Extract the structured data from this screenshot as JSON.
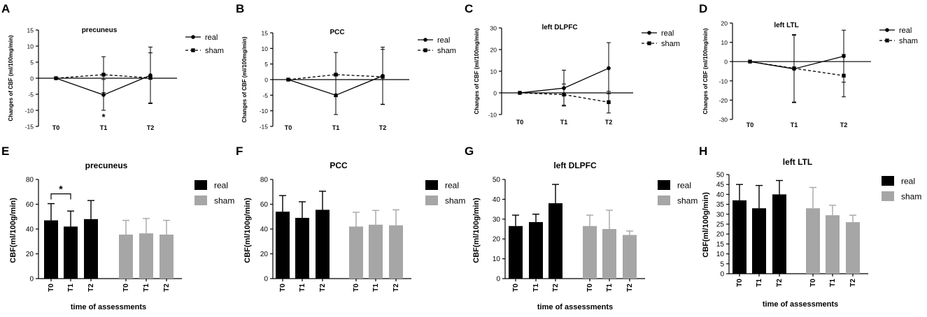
{
  "chart_data": [
    {
      "id": "A",
      "type": "line",
      "panel_label": "A",
      "title": "precuneus",
      "ylabel": "Changes of CBF (ml/100mg/min)",
      "xlabel": "",
      "ylim": [
        -15,
        15
      ],
      "yticks": [
        15,
        10,
        5,
        0,
        -5,
        -10,
        -15
      ],
      "yticklabels": [
        "15",
        "10",
        "5",
        "0",
        "-5",
        "-10",
        "-15"
      ],
      "categories": [
        "T0",
        "T1",
        "T2"
      ],
      "series": [
        {
          "name": "real",
          "values": [
            0,
            -5.2,
            0.9
          ],
          "err": [
            0,
            4.8,
            8.8
          ],
          "dash": false,
          "marker": "circle"
        },
        {
          "name": "sham",
          "values": [
            0,
            1.1,
            0.1
          ],
          "err": [
            0,
            5.6,
            7.8
          ],
          "dash": true,
          "marker": "square"
        }
      ],
      "annotation": "*"
    },
    {
      "id": "B",
      "type": "line",
      "panel_label": "B",
      "title": "PCC",
      "ylabel": "Changes of CBF (ml/100mg/min)",
      "xlabel": "",
      "ylim": [
        -15,
        15
      ],
      "yticks": [
        15,
        10,
        5,
        0,
        -5,
        -10,
        -15
      ],
      "yticklabels": [
        "15",
        "10",
        "5",
        "0",
        "-5",
        "-10",
        "-15"
      ],
      "categories": [
        "T0",
        "T1",
        "T2"
      ],
      "series": [
        {
          "name": "real",
          "values": [
            0,
            -5.0,
            1.2
          ],
          "err": [
            0,
            6.2,
            9.2
          ],
          "dash": false,
          "marker": "circle"
        },
        {
          "name": "sham",
          "values": [
            0,
            1.6,
            0.9
          ],
          "err": [
            0,
            7.1,
            8.8
          ],
          "dash": true,
          "marker": "square"
        }
      ]
    },
    {
      "id": "C",
      "type": "line",
      "panel_label": "C",
      "title": "left DLPFC",
      "ylabel": "Changes of CBF (ml/100mg/min)",
      "xlabel": "",
      "ylim": [
        -10,
        30
      ],
      "yticks": [
        30,
        20,
        10,
        0,
        -10
      ],
      "yticklabels": [
        "30",
        "20",
        "10",
        "0",
        "-10"
      ],
      "categories": [
        "T0",
        "T1",
        "T2"
      ],
      "series": [
        {
          "name": "real",
          "values": [
            0,
            2.2,
            11.4
          ],
          "err": [
            0,
            8.3,
            11.8
          ],
          "dash": false,
          "marker": "circle"
        },
        {
          "name": "sham",
          "values": [
            0,
            -0.8,
            -4.3
          ],
          "err": [
            0,
            4.9,
            5.0
          ],
          "dash": true,
          "marker": "square"
        }
      ]
    },
    {
      "id": "D",
      "type": "line",
      "panel_label": "D",
      "title": "left LTL",
      "ylabel": "Changes of CBF (ml/100mg/min)",
      "xlabel": "",
      "ylim": [
        -30,
        20
      ],
      "yticks": [
        20,
        10,
        0,
        -10,
        -20,
        -30
      ],
      "yticklabels": [
        "20",
        "10",
        "0",
        "-10",
        "-20",
        "-30"
      ],
      "categories": [
        "T0",
        "T1",
        "T2"
      ],
      "series": [
        {
          "name": "real",
          "values": [
            0,
            -3.8,
            2.8
          ],
          "err": [
            0,
            17.5,
            13.5
          ],
          "dash": false,
          "marker": "circle"
        },
        {
          "name": "sham",
          "values": [
            0,
            -3.5,
            -7.3
          ],
          "err": [
            0,
            17.5,
            11.0
          ],
          "dash": true,
          "marker": "square"
        }
      ]
    },
    {
      "id": "E",
      "type": "bar",
      "panel_label": "E",
      "title": "precuneus",
      "ylabel": "CBF(ml/100g/min)",
      "xlabel": "time of assessments",
      "ylim": [
        0,
        80
      ],
      "yticks": [
        80,
        60,
        40,
        20,
        0
      ],
      "yticklabels": [
        "80",
        "60",
        "40",
        "20",
        "0"
      ],
      "categories": [
        "T0",
        "T1",
        "T2"
      ],
      "series": [
        {
          "name": "real",
          "values": [
            47,
            42,
            48
          ],
          "err": [
            13.5,
            12.5,
            15
          ],
          "color": "#000000"
        },
        {
          "name": "sham",
          "values": [
            35.5,
            36.5,
            35.5
          ],
          "err": [
            11.5,
            12,
            11.5
          ],
          "color": "#a6a6a6"
        }
      ],
      "annotation": "*"
    },
    {
      "id": "F",
      "type": "bar",
      "panel_label": "F",
      "title": "PCC",
      "ylabel": "CBF(ml/100g/min)",
      "xlabel": "",
      "ylim": [
        0,
        80
      ],
      "yticks": [
        80,
        60,
        40,
        20,
        0
      ],
      "yticklabels": [
        "80",
        "60",
        "40",
        "20",
        "0"
      ],
      "categories": [
        "T0",
        "T1",
        "T2"
      ],
      "series": [
        {
          "name": "real",
          "values": [
            54,
            49,
            55.5
          ],
          "err": [
            13,
            13,
            15
          ],
          "color": "#000000"
        },
        {
          "name": "sham",
          "values": [
            42,
            43.5,
            43
          ],
          "err": [
            11.5,
            11.5,
            12.5
          ],
          "color": "#a6a6a6"
        }
      ]
    },
    {
      "id": "G",
      "type": "bar",
      "panel_label": "G",
      "title": "left DLPFC",
      "ylabel": "CBF(ml/100g/min)",
      "xlabel": "time of assessments",
      "ylim": [
        0,
        50
      ],
      "yticks": [
        50,
        40,
        30,
        20,
        10,
        0
      ],
      "yticklabels": [
        "50",
        "40",
        "30",
        "20",
        "10",
        "0"
      ],
      "categories": [
        "T0",
        "T1",
        "T2"
      ],
      "series": [
        {
          "name": "real",
          "values": [
            26.5,
            28.5,
            38
          ],
          "err": [
            5.5,
            4,
            9.5
          ],
          "color": "#000000"
        },
        {
          "name": "sham",
          "values": [
            26.5,
            25,
            22
          ],
          "err": [
            5.5,
            9.5,
            2
          ],
          "color": "#a6a6a6"
        }
      ]
    },
    {
      "id": "H",
      "type": "bar",
      "panel_label": "H",
      "title": "left LTL",
      "ylabel": "CBF(ml/100g/min)",
      "xlabel": "time of assessments",
      "ylim": [
        0,
        50
      ],
      "yticks": [
        50,
        45,
        40,
        35,
        30,
        25,
        20,
        15,
        10,
        5,
        0
      ],
      "yticklabels": [
        "50",
        "45",
        "40",
        "35",
        "30",
        "25",
        "20",
        "15",
        "10",
        "5",
        "0"
      ],
      "categories": [
        "T0",
        "T1",
        "T2"
      ],
      "series": [
        {
          "name": "real",
          "values": [
            37,
            33,
            40
          ],
          "err": [
            8,
            11.5,
            7
          ],
          "color": "#000000"
        },
        {
          "name": "sham",
          "values": [
            33,
            29.5,
            26
          ],
          "err": [
            10.5,
            5,
            3.5
          ],
          "color": "#a6a6a6"
        }
      ]
    }
  ]
}
